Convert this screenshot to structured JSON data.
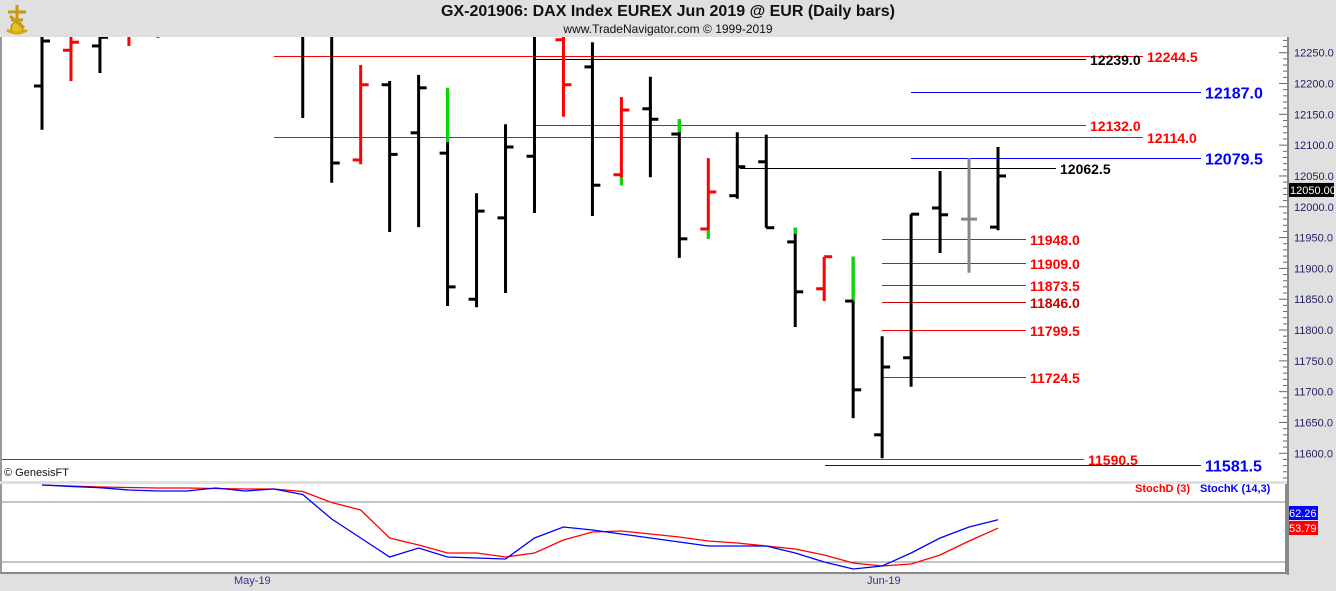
{
  "header": {
    "title": "GX-201906:  DAX Index EUREX Jun 2019 @ EUR  (Daily bars)",
    "subtitle": "www.TradeNavigator.com © 1999-2019"
  },
  "copyright": "© GenesisFT",
  "colors": {
    "up_highlight": "#00dd00",
    "red": "#ff0000",
    "blue": "#0000ff",
    "black": "#000000",
    "gray": "#888888"
  },
  "chart_data": [
    {
      "type": "ohlc",
      "title": "GX-201906:  DAX Index EUREX Jun 2019 @ EUR  (Daily bars)",
      "ylim": [
        11560,
        12275
      ],
      "y_ticks": [
        "12250.0",
        "12200.0",
        "12150.0",
        "12100.0",
        "12050.0",
        "12000.0",
        "11950.0",
        "11900.0",
        "11850.0",
        "11800.0",
        "11750.0",
        "11700.0",
        "11650.0",
        "11600.0"
      ],
      "x_tick_labels": [
        {
          "label": "May-19",
          "bar": 7.3
        },
        {
          "label": "Jun-19",
          "bar": 29
        }
      ],
      "last_price_label": "12050.00",
      "bars": [
        {
          "o": 12196,
          "h": 12290,
          "l": 12125,
          "c": 12269,
          "color": "black"
        },
        {
          "o": 12254,
          "h": 12290,
          "l": 12204,
          "c": 12267,
          "color": "red"
        },
        {
          "o": 12261,
          "h": 12290,
          "l": 12217,
          "c": 12275,
          "color": "black"
        },
        {
          "o": 12282,
          "h": 12295,
          "l": 12261,
          "c": 12278,
          "color": "red"
        },
        {
          "o": 12285,
          "h": 12295,
          "l": 12274,
          "c": 12280,
          "color": "red"
        },
        null,
        null,
        null,
        null,
        {
          "o": 12290,
          "h": 12300,
          "l": 12144,
          "c": 12285,
          "color": "black"
        },
        {
          "o": 12290,
          "h": 12300,
          "l": 12039,
          "c": 12071,
          "color": "black"
        },
        {
          "o": 12076,
          "h": 12230,
          "l": 12069,
          "c": 12198,
          "color": "red"
        },
        {
          "o": 12198,
          "h": 12204,
          "l": 11959,
          "c": 12085,
          "color": "black"
        },
        {
          "o": 12120,
          "h": 12214,
          "l": 11967,
          "c": 12193,
          "color": "black"
        },
        {
          "o": 12087,
          "h": 12193,
          "l": 11839,
          "c": 11870,
          "color": "black",
          "highlight": [
            12105,
            12193
          ]
        },
        {
          "o": 11850,
          "h": 12022,
          "l": 11837,
          "c": 11993,
          "color": "black"
        },
        {
          "o": 11982,
          "h": 12134,
          "l": 11860,
          "c": 12097,
          "color": "black"
        },
        {
          "o": 12082,
          "h": 12300,
          "l": 11990,
          "c": 12290,
          "color": "black"
        },
        {
          "o": 12271,
          "h": 12276,
          "l": 12146,
          "c": 12198,
          "color": "red"
        },
        {
          "o": 12227,
          "h": 12267,
          "l": 11985,
          "c": 12035,
          "color": "black"
        },
        {
          "o": 12052,
          "h": 12178,
          "l": 12035,
          "c": 12157,
          "color": "red",
          "highlight": [
            12035,
            12048
          ]
        },
        {
          "o": 12159,
          "h": 12211,
          "l": 12048,
          "c": 12142,
          "color": "black"
        },
        {
          "o": 12118,
          "h": 12142,
          "l": 11917,
          "c": 11948,
          "color": "black",
          "highlight": [
            12121,
            12142
          ]
        },
        {
          "o": 11964,
          "h": 12079,
          "l": 11948,
          "c": 12024,
          "color": "red",
          "highlight": [
            11948,
            11962
          ]
        },
        {
          "o": 12018,
          "h": 12121,
          "l": 12013,
          "c": 12065,
          "color": "black"
        },
        {
          "o": 12073,
          "h": 12117,
          "l": 11966,
          "c": 11966,
          "color": "black"
        },
        {
          "o": 11943,
          "h": 11966,
          "l": 11805,
          "c": 11862,
          "color": "black",
          "highlight": [
            11956,
            11966
          ]
        },
        {
          "o": 11867,
          "h": 11919,
          "l": 11847,
          "c": 11919,
          "color": "red"
        },
        {
          "o": 11847,
          "h": 11919,
          "l": 11657,
          "c": 11703,
          "color": "black",
          "highlight": [
            11847,
            11919
          ]
        },
        {
          "o": 11630,
          "h": 11790,
          "l": 11592,
          "c": 11740,
          "color": "black"
        },
        {
          "o": 11755,
          "h": 11988,
          "l": 11708,
          "c": 11988,
          "color": "black"
        },
        {
          "o": 11998,
          "h": 12058,
          "l": 11925,
          "c": 11987,
          "color": "black"
        },
        {
          "o": 11980,
          "h": 12079,
          "l": 11893,
          "c": 11980,
          "color": "gray"
        },
        {
          "o": 11967,
          "h": 12097,
          "l": 11962,
          "c": 12050,
          "color": "black"
        }
      ],
      "levels": [
        {
          "value": 12244.5,
          "label": "12244.5",
          "color": "red"
        },
        {
          "value": 12239.0,
          "label": "12239.0",
          "color": "black"
        },
        {
          "value": 12187.0,
          "label": "12187.0",
          "color": "blue"
        },
        {
          "value": 12132.0,
          "label": "12132.0",
          "color": "red"
        },
        {
          "value": 12114.0,
          "label": "12114.0",
          "color": "red"
        },
        {
          "value": 12079.5,
          "label": "12079.5",
          "color": "blue"
        },
        {
          "value": 12062.5,
          "label": "12062.5",
          "color": "black"
        },
        {
          "value": 11948.0,
          "label": "11948.0",
          "color": "red"
        },
        {
          "value": 11909.0,
          "label": "11909.0",
          "color": "red"
        },
        {
          "value": 11873.5,
          "label": "11873.5",
          "color": "red"
        },
        {
          "value": 11846.0,
          "label": "11846.0",
          "color": "darkred"
        },
        {
          "value": 11799.5,
          "label": "11799.5",
          "color": "red"
        },
        {
          "value": 11724.5,
          "label": "11724.5",
          "color": "red"
        },
        {
          "value": 11590.5,
          "label": "11590.5",
          "color": "red"
        },
        {
          "value": 11581.5,
          "label": "11581.5",
          "color": "blue"
        }
      ]
    },
    {
      "type": "line",
      "ylim": [
        0,
        100
      ],
      "gridlines": [
        20,
        80
      ],
      "series": [
        {
          "name": "StochD (3)",
          "color": "#ff0000",
          "last_label": "53.79",
          "values": [
            97,
            96,
            95,
            94.5,
            94,
            94,
            93.5,
            93,
            93,
            90.5,
            79.5,
            72,
            44,
            37,
            29,
            29,
            25,
            29,
            42,
            50,
            51,
            48,
            45,
            41,
            39,
            36,
            33,
            27,
            19,
            16,
            18,
            27,
            41,
            53.79
          ]
        },
        {
          "name": "StochK (14,3)",
          "color": "#0000ff",
          "last_label": "62.26",
          "values": [
            97,
            95.5,
            94.3,
            92,
            91,
            91,
            94,
            91,
            93,
            87.5,
            63,
            44,
            25,
            34,
            25,
            24,
            23,
            44,
            55,
            52,
            48,
            44,
            40,
            36,
            36,
            36,
            29,
            20,
            13,
            16,
            29,
            44,
            55,
            62.26
          ]
        }
      ]
    }
  ]
}
